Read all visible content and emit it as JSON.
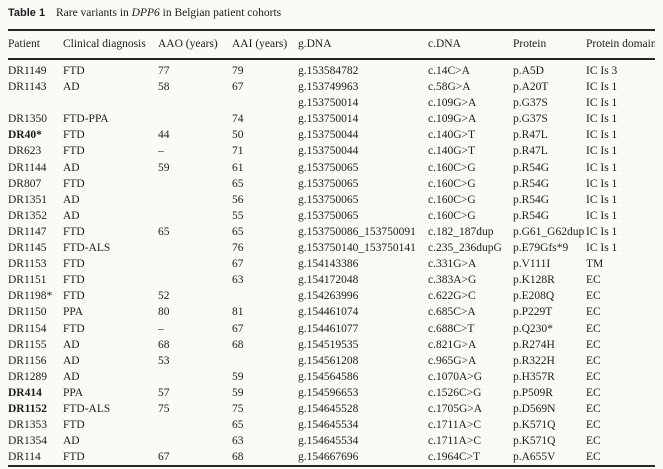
{
  "caption": {
    "label": "Table 1",
    "pre_gene": "Rare variants in",
    "gene": "DPP6",
    "post_gene": "in Belgian patient cohorts"
  },
  "table": {
    "columns": [
      "Patient",
      "Clinical diagnosis",
      "AAO (years)",
      "AAI (years)",
      "g.DNA",
      "c.DNA",
      "Protein",
      "Protein domain"
    ],
    "rows": [
      {
        "patient": "DR1149",
        "bold": false,
        "diagnosis": "FTD",
        "aao": "77",
        "aai": "79",
        "gdna": "g.153584782",
        "cdna": "c.14C>A",
        "protein": "p.A5D",
        "domain": "IC Is 3"
      },
      {
        "patient": "DR1143",
        "bold": false,
        "diagnosis": "AD",
        "aao": "58",
        "aai": "67",
        "gdna": "g.153749963",
        "cdna": "c.58G>A",
        "protein": "p.A20T",
        "domain": "IC Is 1"
      },
      {
        "patient": "",
        "bold": false,
        "diagnosis": "",
        "aao": "",
        "aai": "",
        "gdna": "g.153750014",
        "cdna": "c.109G>A",
        "protein": "p.G37S",
        "domain": "IC Is 1"
      },
      {
        "patient": "DR1350",
        "bold": false,
        "diagnosis": "FTD-PPA",
        "aao": "",
        "aai": "74",
        "gdna": "g.153750014",
        "cdna": "c.109G>A",
        "protein": "p.G37S",
        "domain": "IC Is 1"
      },
      {
        "patient": "DR40*",
        "bold": true,
        "diagnosis": "FTD",
        "aao": "44",
        "aai": "50",
        "gdna": "g.153750044",
        "cdna": "c.140G>T",
        "protein": "p.R47L",
        "domain": "IC Is 1"
      },
      {
        "patient": "DR623",
        "bold": false,
        "diagnosis": "FTD",
        "aao": "–",
        "aai": "71",
        "gdna": "g.153750044",
        "cdna": "c.140G>T",
        "protein": "p.R47L",
        "domain": "IC Is 1"
      },
      {
        "patient": "DR1144",
        "bold": false,
        "diagnosis": "AD",
        "aao": "59",
        "aai": "61",
        "gdna": "g.153750065",
        "cdna": "c.160C>G",
        "protein": "p.R54G",
        "domain": "IC Is 1"
      },
      {
        "patient": "DR807",
        "bold": false,
        "diagnosis": "FTD",
        "aao": "",
        "aai": "65",
        "gdna": "g.153750065",
        "cdna": "c.160C>G",
        "protein": "p.R54G",
        "domain": "IC Is 1"
      },
      {
        "patient": "DR1351",
        "bold": false,
        "diagnosis": "AD",
        "aao": "",
        "aai": "56",
        "gdna": "g.153750065",
        "cdna": "c.160C>G",
        "protein": "p.R54G",
        "domain": "IC Is 1"
      },
      {
        "patient": "DR1352",
        "bold": false,
        "diagnosis": "AD",
        "aao": "",
        "aai": "55",
        "gdna": "g.153750065",
        "cdna": "c.160C>G",
        "protein": "p.R54G",
        "domain": "IC Is 1"
      },
      {
        "patient": "DR1147",
        "bold": false,
        "diagnosis": "FTD",
        "aao": "65",
        "aai": "65",
        "gdna": "g.153750086_153750091",
        "cdna": "c.182_187dup",
        "protein": "p.G61_G62dup",
        "domain": "IC Is 1"
      },
      {
        "patient": "DR1145",
        "bold": false,
        "diagnosis": "FTD-ALS",
        "aao": "",
        "aai": "76",
        "gdna": "g.153750140_153750141",
        "cdna": "c.235_236dupG",
        "protein": "p.E79Gfs*9",
        "domain": "IC Is 1"
      },
      {
        "patient": "DR1153",
        "bold": false,
        "diagnosis": "FTD",
        "aao": "",
        "aai": "67",
        "gdna": "g.154143386",
        "cdna": "c.331G>A",
        "protein": "p.V111I",
        "domain": "TM"
      },
      {
        "patient": "DR1151",
        "bold": false,
        "diagnosis": "FTD",
        "aao": "",
        "aai": "63",
        "gdna": "g.154172048",
        "cdna": "c.383A>G",
        "protein": "p.K128R",
        "domain": "EC"
      },
      {
        "patient": "DR1198*",
        "bold": false,
        "diagnosis": "FTD",
        "aao": "52",
        "aai": "",
        "gdna": "g.154263996",
        "cdna": "c.622G>C",
        "protein": "p.E208Q",
        "domain": "EC"
      },
      {
        "patient": "DR1150",
        "bold": false,
        "diagnosis": "PPA",
        "aao": "80",
        "aai": "81",
        "gdna": "g.154461074",
        "cdna": "c.685C>A",
        "protein": "p.P229T",
        "domain": "EC"
      },
      {
        "patient": "DR1154",
        "bold": false,
        "diagnosis": "FTD",
        "aao": "–",
        "aai": "67",
        "gdna": "g.154461077",
        "cdna": "c.688C>T",
        "protein": "p.Q230*",
        "domain": "EC"
      },
      {
        "patient": "DR1155",
        "bold": false,
        "diagnosis": "AD",
        "aao": "68",
        "aai": "68",
        "gdna": "g.154519535",
        "cdna": "c.821G>A",
        "protein": "p.R274H",
        "domain": "EC"
      },
      {
        "patient": "DR1156",
        "bold": false,
        "diagnosis": "AD",
        "aao": "53",
        "aai": "",
        "gdna": "g.154561208",
        "cdna": "c.965G>A",
        "protein": "p.R322H",
        "domain": "EC"
      },
      {
        "patient": "DR1289",
        "bold": false,
        "diagnosis": "AD",
        "aao": "",
        "aai": "59",
        "gdna": "g.154564586",
        "cdna": "c.1070A>G",
        "protein": "p.H357R",
        "domain": "EC"
      },
      {
        "patient": "DR414",
        "bold": true,
        "diagnosis": "PPA",
        "aao": "57",
        "aai": "59",
        "gdna": "g.154596653",
        "cdna": "c.1526C>G",
        "protein": "p.P509R",
        "domain": "EC"
      },
      {
        "patient": "DR1152",
        "bold": true,
        "diagnosis": "FTD-ALS",
        "aao": "75",
        "aai": "75",
        "gdna": "g.154645528",
        "cdna": "c.1705G>A",
        "protein": "p.D569N",
        "domain": "EC"
      },
      {
        "patient": "DR1353",
        "bold": false,
        "diagnosis": "FTD",
        "aao": "",
        "aai": "65",
        "gdna": "g.154645534",
        "cdna": "c.1711A>C",
        "protein": "p.K571Q",
        "domain": "EC"
      },
      {
        "patient": "DR1354",
        "bold": false,
        "diagnosis": "AD",
        "aao": "",
        "aai": "63",
        "gdna": "g.154645534",
        "cdna": "c.1711A>C",
        "protein": "p.K571Q",
        "domain": "EC"
      },
      {
        "patient": "DR114",
        "bold": false,
        "diagnosis": "FTD",
        "aao": "67",
        "aai": "68",
        "gdna": "g.154667696",
        "cdna": "c.1964C>T",
        "protein": "p.A655V",
        "domain": "EC"
      }
    ]
  }
}
